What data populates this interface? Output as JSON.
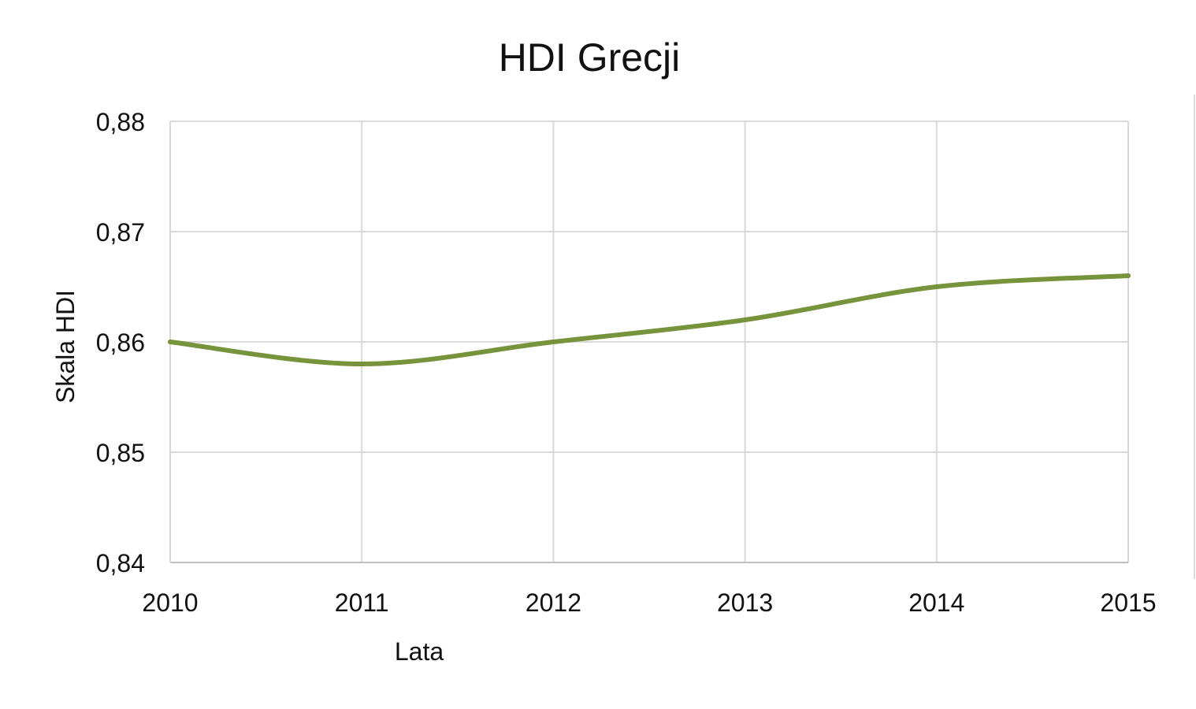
{
  "chart_data": {
    "type": "line",
    "title": "HDI Grecji",
    "xlabel": "Lata",
    "ylabel": "Skala HDI",
    "x": [
      "2010",
      "2011",
      "2012",
      "2013",
      "2014",
      "2015"
    ],
    "x_tick_labels": [
      "2010",
      "2011",
      "2012",
      "2013",
      "2014",
      "2015"
    ],
    "y_tick_labels": [
      "0,84",
      "0,85",
      "0,86",
      "0,87",
      "0,88"
    ],
    "y_ticks": [
      0.84,
      0.85,
      0.86,
      0.87,
      0.88
    ],
    "ylim": [
      0.84,
      0.88
    ],
    "grid": true,
    "legend": "none",
    "series": [
      {
        "values": [
          0.86,
          0.858,
          0.86,
          0.862,
          0.865,
          0.866
        ],
        "color": "#77933c",
        "smooth": true
      }
    ]
  }
}
